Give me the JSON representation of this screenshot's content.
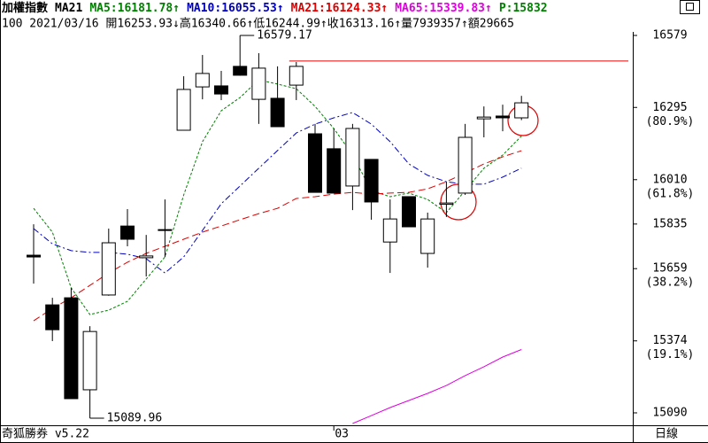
{
  "chart_data": {
    "type": "candlestick",
    "header_line1": [
      {
        "text": "加權指數",
        "color": "#000000"
      },
      {
        "text": "MA21",
        "color": "#000000"
      },
      {
        "text": "MA5:16181.78↑",
        "color": "#008000"
      },
      {
        "text": "MA10:16055.53↑",
        "color": "#0000c0"
      },
      {
        "text": "MA21:16124.33↑",
        "color": "#e00000"
      },
      {
        "text": "MA65:15339.83↑",
        "color": "#e000e0"
      },
      {
        "text": "P:15832",
        "color": "#008000"
      }
    ],
    "header_line2": "100 2021/03/16 開16253.93↓高16340.66↑低16244.99↑收16313.16↑量7939357↑額29665",
    "footer_left": "奇狐勝券 v5.22",
    "footer_right": "日線",
    "categories": [
      null,
      null,
      null,
      null,
      null,
      null,
      null,
      null,
      null,
      null,
      null,
      null,
      null,
      null,
      null,
      null,
      "03",
      null,
      null,
      null,
      null,
      null,
      null,
      null,
      null,
      null,
      null
    ],
    "open": [
      15712,
      15516,
      15544,
      15181,
      15555,
      15827,
      15702,
      15810,
      16205,
      16376,
      16380,
      16457,
      16327,
      16331,
      16383,
      16191,
      16132,
      15985,
      16090,
      15764,
      15943,
      15719,
      15913,
      15957,
      16250,
      16261,
      16253.93
    ],
    "high": [
      15834,
      15544,
      15583,
      15432,
      15817,
      15894,
      15792,
      15932,
      16418,
      16502,
      16439,
      16579.17,
      16509,
      16457,
      16474,
      16230,
      16212,
      16230,
      16090,
      15932,
      15943,
      15880,
      16002,
      16230,
      16299,
      16306,
      16340.66
    ],
    "low": [
      15600,
      15373,
      15146,
      15089.96,
      15552,
      15747,
      15628,
      15705,
      16205,
      16327,
      16324,
      16420,
      16230,
      16219,
      16324,
      15960,
      15957,
      15890,
      15852,
      15642,
      15824,
      15663,
      15863,
      15950,
      16177,
      16201,
      16244.99
    ],
    "close": [
      15705,
      15418,
      15146,
      15411,
      15761,
      15775,
      15709,
      15813,
      16366,
      16429,
      16348,
      16422,
      16450,
      16219,
      16457,
      15960,
      15957,
      16212,
      15922,
      15855,
      15824,
      15855,
      15918,
      16177,
      16257,
      16254,
      16313.16
    ],
    "up_color": "#ffffff",
    "down_color": "#000000",
    "series": [
      {
        "name": "MA5",
        "color": "#008000",
        "dash": "3,2",
        "values": [
          15897,
          15803,
          15583,
          15478,
          15495,
          15530,
          15618,
          15705,
          15950,
          16160,
          16282,
          16334,
          16404,
          16387,
          16369,
          16299,
          16212,
          16107,
          15967,
          15943,
          15957,
          15932,
          15880,
          15967,
          16055,
          16107,
          16181.78
        ]
      },
      {
        "name": "MA10",
        "color": "#0000c0",
        "dash": "7,3,2,3",
        "values": [
          15817,
          15757,
          15730,
          15723,
          15723,
          15716,
          15698,
          15642,
          15705,
          15810,
          15915,
          15985,
          16055,
          16125,
          16194,
          16229,
          16254,
          16275,
          16229,
          16160,
          16072,
          16027,
          16002,
          15992,
          15992,
          16020,
          16055.53
        ]
      },
      {
        "name": "MA21",
        "color": "#e00000",
        "dash": "8,4",
        "values": [
          15453,
          15502,
          15544,
          15593,
          15642,
          15684,
          15719,
          15747,
          15775,
          15803,
          15827,
          15852,
          15876,
          15897,
          15936,
          15943,
          15953,
          15960,
          15953,
          15957,
          15960,
          15974,
          16002,
          16037,
          16072,
          16100,
          16124.33
        ]
      },
      {
        "name": "MA65",
        "color": "#e000e0",
        "dash": "none",
        "values": [
          null,
          null,
          null,
          null,
          null,
          null,
          null,
          null,
          null,
          null,
          null,
          null,
          null,
          null,
          null,
          null,
          null,
          15048,
          15079,
          15111,
          15139,
          15167,
          15198,
          15237,
          15272,
          15310,
          15339.83
        ]
      }
    ],
    "ref_line": {
      "value": 16478,
      "color": "#e00000",
      "start": 14
    },
    "annotations": [
      {
        "text": "16579.17",
        "index": 11,
        "value": 16579.17
      },
      {
        "text": "15089.96",
        "index": 3,
        "value": 15089.96
      }
    ],
    "ylim": [
      15041,
      16593
    ],
    "yticks": [
      15090,
      15374,
      15659,
      15835,
      16010,
      16295,
      16579
    ],
    "fib_levels": [
      {
        "value": 16295,
        "label": "(80.9%)"
      },
      {
        "value": 16010,
        "label": "(61.8%)"
      },
      {
        "value": 15659,
        "label": "(38.2%)"
      },
      {
        "value": 15374,
        "label": "(19.1%)"
      }
    ]
  }
}
